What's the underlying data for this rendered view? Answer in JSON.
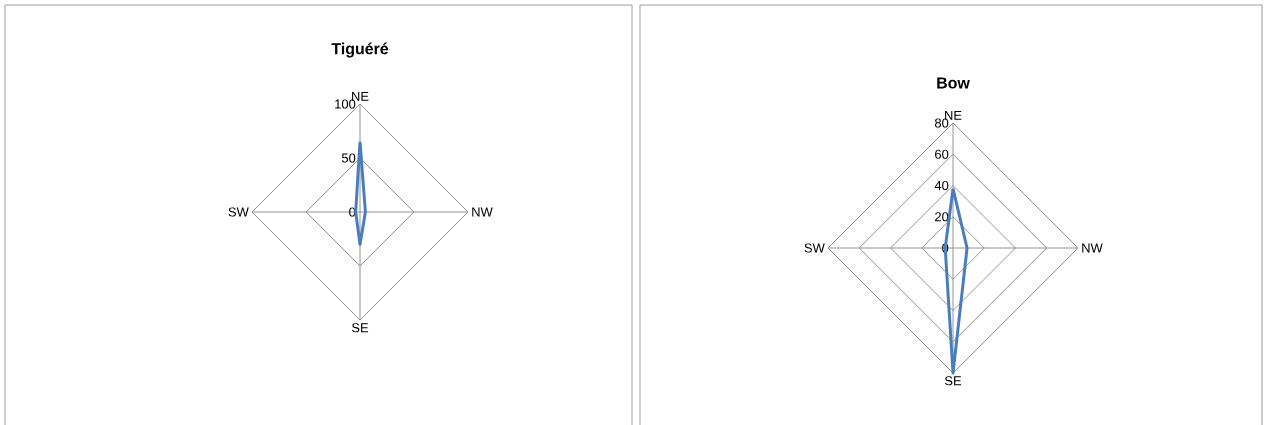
{
  "chart_data": [
    {
      "type": "radar",
      "title": "Tiguéré",
      "categories": [
        "NE",
        "NW",
        "SE",
        "SW"
      ],
      "ylim": [
        0,
        100
      ],
      "yticks": [
        0,
        50,
        100
      ],
      "grid": true,
      "series": [
        {
          "color": "#4a7ebb",
          "values": [
            65,
            5,
            30,
            4
          ]
        }
      ]
    },
    {
      "type": "radar",
      "title": "Bow",
      "categories": [
        "NE",
        "NW",
        "SE",
        "SW"
      ],
      "ylim": [
        0,
        80
      ],
      "yticks": [
        0,
        20,
        40,
        60,
        80
      ],
      "grid": true,
      "series": [
        {
          "color": "#4a7ebb",
          "values": [
            38,
            9,
            80,
            5
          ]
        }
      ]
    }
  ]
}
